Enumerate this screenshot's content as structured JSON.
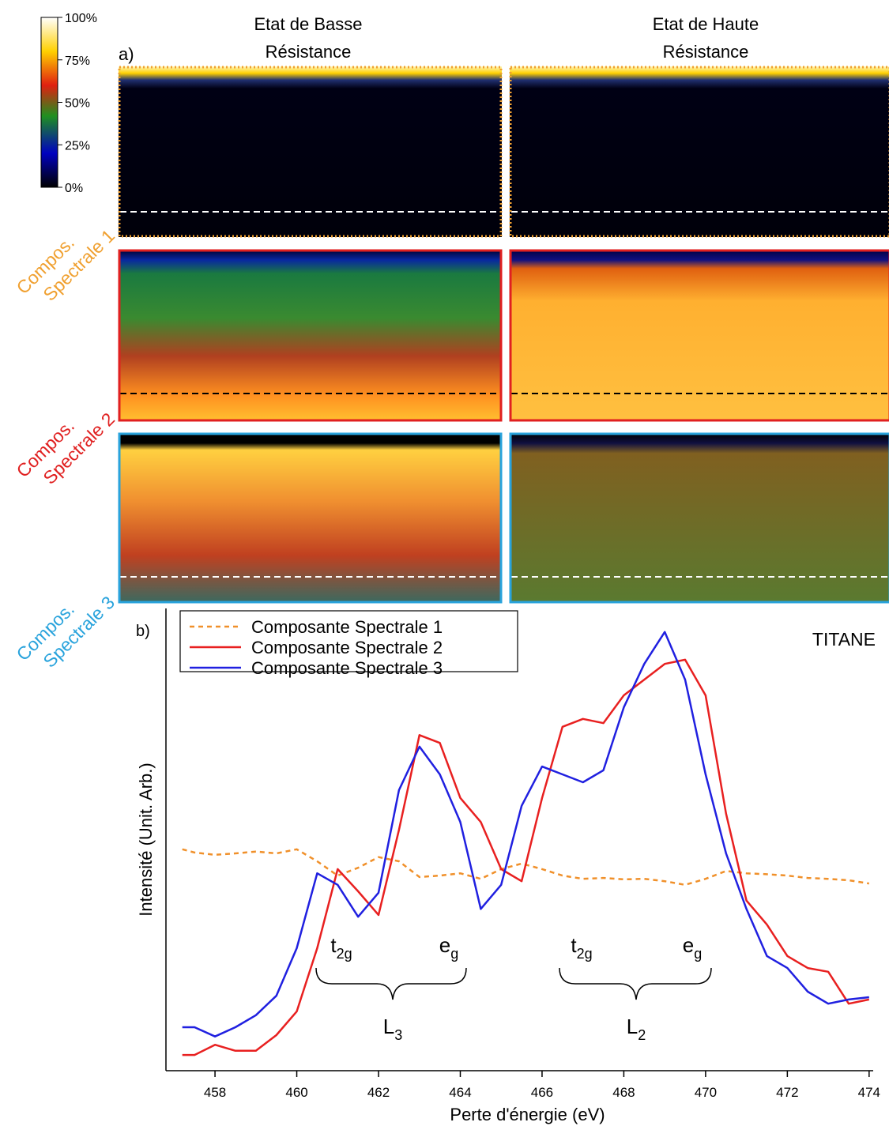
{
  "chart_data": [
    {
      "type": "heatmap",
      "label": "a)",
      "columns": [
        [
          "Etat de Basse",
          "Résistance"
        ],
        [
          "Etat de Haute",
          "Résistance"
        ]
      ],
      "rows": [
        {
          "label": [
            "Compos.",
            "Spectrale 1"
          ],
          "color": "#f0a030"
        },
        {
          "label": [
            "Compos.",
            "Spectrale 2"
          ],
          "color": "#e02020"
        },
        {
          "label": [
            "Compos.",
            "Spectrale 3"
          ],
          "color": "#29a3dc"
        }
      ],
      "colorbar": {
        "lim": [
          0,
          100
        ],
        "ticks": [
          {
            "value": 0,
            "label": "0%"
          },
          {
            "value": 25,
            "label": "25%"
          },
          {
            "value": 50,
            "label": "50%"
          },
          {
            "value": 75,
            "label": "75%"
          },
          {
            "value": 100,
            "label": "100%"
          }
        ]
      }
    },
    {
      "type": "line",
      "label": "b)",
      "annotation": "TITANE",
      "xlabel": "Perte d'énergie (eV)",
      "ylabel": "Intensité (Unit. Arb.)",
      "xlim": [
        456.8,
        474.1
      ],
      "xticks": [
        458,
        460,
        462,
        464,
        466,
        468,
        470,
        472,
        474
      ],
      "ylim": [
        0,
        10
      ],
      "x": [
        457.2,
        457.5,
        458,
        458.5,
        459,
        459.5,
        460,
        460.5,
        461,
        461.5,
        462,
        462.5,
        463,
        463.5,
        464,
        464.5,
        465,
        465.5,
        466,
        466.5,
        467,
        467.5,
        468,
        468.5,
        469,
        469.5,
        470,
        470.5,
        471,
        471.5,
        472,
        472.5,
        473,
        473.5,
        474
      ],
      "series": [
        {
          "name": "Composante Spectrale 1",
          "color": "#f0902a",
          "dashed": true,
          "values": [
            4.79,
            4.72,
            4.67,
            4.7,
            4.74,
            4.7,
            4.79,
            4.53,
            4.22,
            4.39,
            4.62,
            4.53,
            4.19,
            4.22,
            4.27,
            4.15,
            4.36,
            4.48,
            4.36,
            4.22,
            4.15,
            4.17,
            4.14,
            4.15,
            4.1,
            4.02,
            4.15,
            4.32,
            4.27,
            4.25,
            4.22,
            4.17,
            4.15,
            4.12,
            4.05
          ]
        },
        {
          "name": "Composante Spectrale 2",
          "color": "#e82020",
          "dashed": false,
          "values": [
            0.34,
            0.34,
            0.56,
            0.43,
            0.43,
            0.77,
            1.28,
            2.65,
            4.36,
            3.88,
            3.37,
            5.21,
            7.26,
            7.09,
            5.9,
            5.38,
            4.36,
            4.1,
            5.9,
            7.44,
            7.61,
            7.52,
            8.12,
            8.46,
            8.8,
            8.89,
            8.12,
            5.56,
            3.68,
            3.16,
            2.48,
            2.22,
            2.14,
            1.45,
            1.54
          ]
        },
        {
          "name": "Composante Spectrale 3",
          "color": "#2020e0",
          "dashed": false,
          "values": [
            0.94,
            0.94,
            0.74,
            0.94,
            1.2,
            1.62,
            2.65,
            4.27,
            4.02,
            3.33,
            3.85,
            6.07,
            7.01,
            6.41,
            5.38,
            3.5,
            4.02,
            5.73,
            6.58,
            6.41,
            6.24,
            6.5,
            7.86,
            8.8,
            9.49,
            8.46,
            6.41,
            4.7,
            3.5,
            2.48,
            2.22,
            1.71,
            1.45,
            1.54,
            1.59
          ]
        }
      ],
      "peaks": [
        {
          "text": "t",
          "sub": "2g"
        },
        {
          "text": "e",
          "sub": "g"
        },
        {
          "text": "L",
          "sub": "3"
        },
        {
          "text": "t",
          "sub": "2g"
        },
        {
          "text": "e",
          "sub": "g"
        },
        {
          "text": "L",
          "sub": "2"
        }
      ]
    }
  ]
}
